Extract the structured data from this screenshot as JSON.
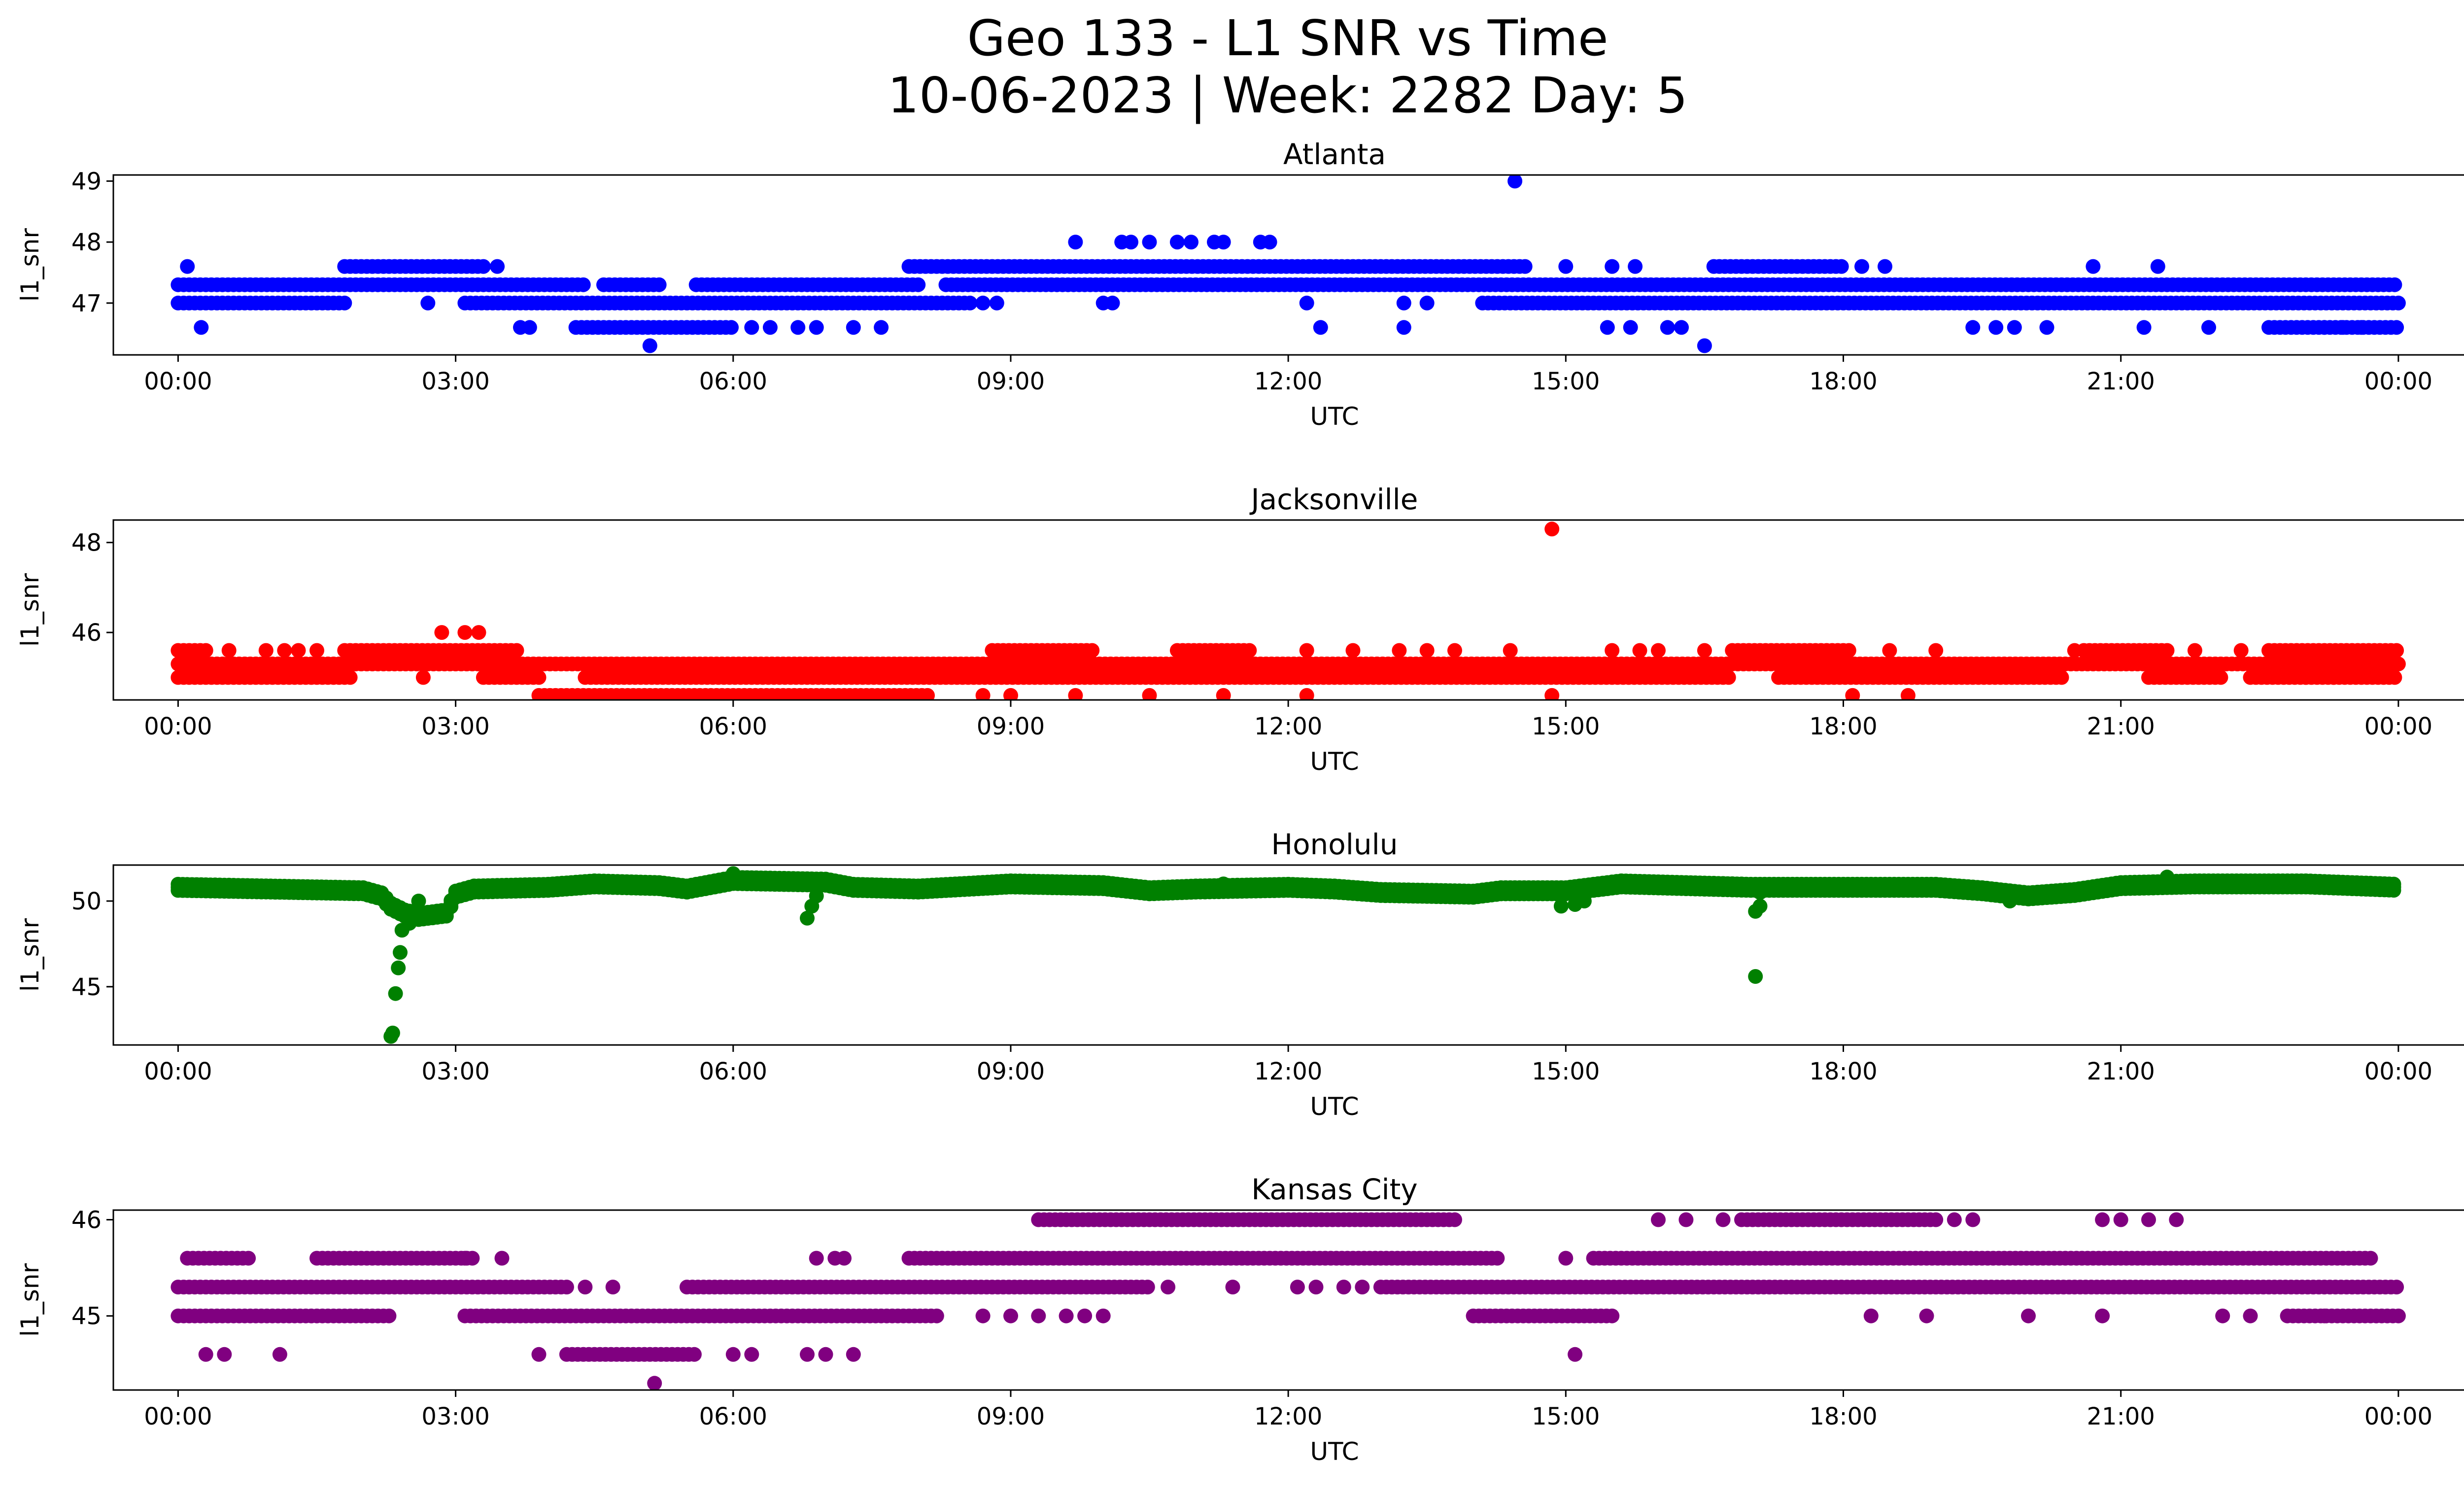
{
  "figure": {
    "title_line1": "Geo 133 - L1 SNR vs Time",
    "title_line2": "10-06-2023 | Week: 2282 Day: 5"
  },
  "chart_data": [
    {
      "type": "scatter",
      "title": "Atlanta",
      "xlabel": "UTC",
      "ylabel": "l1_snr",
      "color": "#0000ff",
      "xlim": [
        -0.7,
        25.7
      ],
      "ylim": [
        46.15,
        49.1
      ],
      "xticks": [
        "00:00",
        "03:00",
        "06:00",
        "09:00",
        "12:00",
        "15:00",
        "18:00",
        "21:00",
        "00:00"
      ],
      "yticks": [
        47,
        48,
        49
      ],
      "bands": [
        {
          "y": 47.0,
          "ranges": [
            [
              0.0,
              1.8
            ],
            [
              3.1,
              8.6
            ],
            [
              14.1,
              24.0
            ]
          ]
        },
        {
          "y": 47.3,
          "ranges": [
            [
              0.0,
              4.4
            ],
            [
              4.6,
              5.2
            ],
            [
              5.6,
              8.0
            ],
            [
              8.3,
              24.0
            ]
          ]
        },
        {
          "y": 47.6,
          "ranges": [
            [
              1.8,
              3.3
            ],
            [
              7.9,
              14.6
            ],
            [
              16.6,
              18.0
            ]
          ]
        },
        {
          "y": 46.6,
          "ranges": [
            [
              4.3,
              6.0
            ],
            [
              22.6,
              24.0
            ]
          ]
        }
      ],
      "points": [
        [
          0.1,
          47.6
        ],
        [
          0.25,
          46.6
        ],
        [
          2.7,
          47.0
        ],
        [
          3.45,
          47.6
        ],
        [
          3.7,
          46.6
        ],
        [
          3.8,
          46.6
        ],
        [
          5.1,
          46.3
        ],
        [
          6.2,
          46.6
        ],
        [
          6.4,
          46.6
        ],
        [
          6.7,
          46.6
        ],
        [
          6.9,
          46.6
        ],
        [
          7.3,
          46.6
        ],
        [
          7.6,
          46.6
        ],
        [
          8.7,
          47.0
        ],
        [
          8.85,
          47.0
        ],
        [
          9.7,
          48.0
        ],
        [
          10.0,
          47.0
        ],
        [
          10.1,
          47.0
        ],
        [
          10.2,
          48.0
        ],
        [
          10.3,
          48.0
        ],
        [
          10.5,
          48.0
        ],
        [
          10.8,
          48.0
        ],
        [
          10.95,
          48.0
        ],
        [
          11.2,
          48.0
        ],
        [
          11.3,
          48.0
        ],
        [
          11.7,
          48.0
        ],
        [
          11.8,
          48.0
        ],
        [
          12.2,
          47.0
        ],
        [
          12.35,
          46.6
        ],
        [
          13.25,
          47.0
        ],
        [
          13.25,
          46.6
        ],
        [
          13.5,
          47.0
        ],
        [
          14.45,
          49.0
        ],
        [
          15.0,
          47.6
        ],
        [
          15.45,
          46.6
        ],
        [
          15.5,
          47.6
        ],
        [
          15.7,
          46.6
        ],
        [
          15.75,
          47.6
        ],
        [
          16.1,
          46.6
        ],
        [
          16.25,
          46.6
        ],
        [
          16.5,
          46.3
        ],
        [
          18.2,
          47.6
        ],
        [
          18.45,
          47.6
        ],
        [
          19.4,
          46.6
        ],
        [
          19.65,
          46.6
        ],
        [
          19.85,
          46.6
        ],
        [
          20.2,
          46.6
        ],
        [
          20.7,
          47.6
        ],
        [
          21.25,
          46.6
        ],
        [
          21.4,
          47.6
        ],
        [
          21.95,
          46.6
        ],
        [
          23.2,
          46.6
        ],
        [
          23.4,
          46.6
        ],
        [
          23.6,
          46.6
        ]
      ]
    },
    {
      "type": "scatter",
      "title": "Jacksonville",
      "xlabel": "UTC",
      "ylabel": "l1_snr",
      "color": "#ff0000",
      "xlim": [
        -0.7,
        25.7
      ],
      "ylim": [
        44.5,
        48.5
      ],
      "xticks": [
        "00:00",
        "03:00",
        "06:00",
        "09:00",
        "12:00",
        "15:00",
        "18:00",
        "21:00",
        "00:00"
      ],
      "yticks": [
        46,
        48
      ],
      "bands": [
        {
          "y": 45.0,
          "ranges": [
            [
              0.0,
              1.9
            ],
            [
              3.3,
              3.9
            ],
            [
              4.4,
              16.8
            ],
            [
              17.3,
              20.4
            ],
            [
              21.3,
              22.1
            ],
            [
              22.4,
              24.0
            ]
          ]
        },
        {
          "y": 45.3,
          "ranges": [
            [
              0.0,
              24.0
            ]
          ]
        },
        {
          "y": 45.6,
          "ranges": [
            [
              0.0,
              0.35
            ],
            [
              1.8,
              3.7
            ],
            [
              8.8,
              9.9
            ],
            [
              10.8,
              11.6
            ],
            [
              16.8,
              18.1
            ],
            [
              20.6,
              21.5
            ],
            [
              22.6,
              24.0
            ]
          ]
        },
        {
          "y": 44.6,
          "ranges": [
            [
              3.9,
              8.1
            ]
          ]
        }
      ],
      "points": [
        [
          0.55,
          45.6
        ],
        [
          0.95,
          45.6
        ],
        [
          1.15,
          45.6
        ],
        [
          1.3,
          45.6
        ],
        [
          1.5,
          45.6
        ],
        [
          2.65,
          45.0
        ],
        [
          2.85,
          46.0
        ],
        [
          3.1,
          46.0
        ],
        [
          3.25,
          46.0
        ],
        [
          8.7,
          44.6
        ],
        [
          9.0,
          44.6
        ],
        [
          9.7,
          44.6
        ],
        [
          10.5,
          44.6
        ],
        [
          11.3,
          44.6
        ],
        [
          12.2,
          44.6
        ],
        [
          12.2,
          45.6
        ],
        [
          12.7,
          45.6
        ],
        [
          13.2,
          45.6
        ],
        [
          13.5,
          45.6
        ],
        [
          13.8,
          45.6
        ],
        [
          14.4,
          45.6
        ],
        [
          14.85,
          48.3
        ],
        [
          14.85,
          44.6
        ],
        [
          15.5,
          45.6
        ],
        [
          15.8,
          45.6
        ],
        [
          16.0,
          45.6
        ],
        [
          16.5,
          45.6
        ],
        [
          18.1,
          44.6
        ],
        [
          18.7,
          44.6
        ],
        [
          18.5,
          45.6
        ],
        [
          19.0,
          45.6
        ],
        [
          20.5,
          45.6
        ],
        [
          21.8,
          45.6
        ],
        [
          22.3,
          45.6
        ],
        [
          23.0,
          45.0
        ],
        [
          23.3,
          45.0
        ]
      ]
    },
    {
      "type": "scatter",
      "title": "Honolulu",
      "xlabel": "UTC",
      "ylabel": "l1_snr",
      "color": "#008000",
      "xlim": [
        -0.7,
        25.7
      ],
      "ylim": [
        41.6,
        52.1
      ],
      "xticks": [
        "00:00",
        "03:00",
        "06:00",
        "09:00",
        "12:00",
        "15:00",
        "18:00",
        "21:00",
        "00:00"
      ],
      "yticks": [
        45,
        50
      ],
      "segments": [
        [
          0.0,
          50.8
        ],
        [
          1.0,
          50.7
        ],
        [
          2.0,
          50.6
        ],
        [
          2.2,
          50.3
        ],
        [
          2.3,
          49.7
        ],
        [
          2.45,
          49.3
        ],
        [
          2.6,
          49.1
        ],
        [
          2.9,
          49.3
        ],
        [
          3.0,
          50.4
        ],
        [
          3.2,
          50.7
        ],
        [
          4.0,
          50.8
        ],
        [
          4.5,
          51.0
        ],
        [
          5.2,
          50.9
        ],
        [
          5.5,
          50.7
        ],
        [
          6.0,
          51.2
        ],
        [
          7.0,
          51.1
        ],
        [
          7.3,
          50.8
        ],
        [
          8.0,
          50.7
        ],
        [
          9.0,
          51.0
        ],
        [
          10.0,
          50.9
        ],
        [
          10.5,
          50.6
        ],
        [
          11.0,
          50.7
        ],
        [
          12.0,
          50.8
        ],
        [
          12.5,
          50.7
        ],
        [
          13.0,
          50.5
        ],
        [
          14.0,
          50.4
        ],
        [
          14.3,
          50.6
        ],
        [
          15.0,
          50.6
        ],
        [
          15.3,
          50.8
        ],
        [
          15.6,
          51.0
        ],
        [
          17.0,
          50.8
        ],
        [
          18.0,
          50.8
        ],
        [
          19.0,
          50.8
        ],
        [
          19.5,
          50.6
        ],
        [
          20.0,
          50.3
        ],
        [
          20.5,
          50.5
        ],
        [
          21.0,
          50.9
        ],
        [
          21.8,
          51.0
        ],
        [
          22.5,
          51.0
        ],
        [
          23.0,
          51.0
        ],
        [
          24.0,
          50.8
        ]
      ],
      "points": [
        [
          2.3,
          42.1
        ],
        [
          2.32,
          42.3
        ],
        [
          2.35,
          44.6
        ],
        [
          2.38,
          46.1
        ],
        [
          2.4,
          47.0
        ],
        [
          2.42,
          48.3
        ],
        [
          2.5,
          49.0
        ],
        [
          2.5,
          48.7
        ],
        [
          2.6,
          50.0
        ],
        [
          6.8,
          49.0
        ],
        [
          6.85,
          49.7
        ],
        [
          6.9,
          50.3
        ],
        [
          14.95,
          49.7
        ],
        [
          15.1,
          49.8
        ],
        [
          15.2,
          50.0
        ],
        [
          17.05,
          45.6
        ],
        [
          17.05,
          49.4
        ],
        [
          17.1,
          49.7
        ],
        [
          17.1,
          50.5
        ],
        [
          6.0,
          51.6
        ],
        [
          11.3,
          51.0
        ],
        [
          13.2,
          50.5
        ],
        [
          19.8,
          50.0
        ],
        [
          21.5,
          51.4
        ]
      ]
    },
    {
      "type": "scatter",
      "title": "Kansas City",
      "xlabel": "UTC",
      "ylabel": "l1_snr",
      "color": "#800080",
      "xlim": [
        -0.7,
        25.7
      ],
      "ylim": [
        44.23,
        46.1
      ],
      "xticks": [
        "00:00",
        "03:00",
        "06:00",
        "09:00",
        "12:00",
        "15:00",
        "18:00",
        "21:00",
        "00:00"
      ],
      "yticks": [
        45,
        46
      ],
      "bands": [
        {
          "y": 45.0,
          "ranges": [
            [
              0.0,
              2.3
            ],
            [
              3.1,
              8.2
            ],
            [
              14.0,
              15.5
            ],
            [
              22.8,
              24.0
            ]
          ]
        },
        {
          "y": 45.3,
          "ranges": [
            [
              0.0,
              4.2
            ],
            [
              5.5,
              10.5
            ],
            [
              13.0,
              24.0
            ]
          ]
        },
        {
          "y": 45.6,
          "ranges": [
            [
              0.1,
              0.8
            ],
            [
              1.5,
              3.2
            ],
            [
              7.9,
              14.3
            ],
            [
              15.3,
              23.7
            ]
          ]
        },
        {
          "y": 46.0,
          "ranges": [
            [
              9.3,
              13.8
            ],
            [
              16.9,
              19.0
            ]
          ]
        },
        {
          "y": 44.6,
          "ranges": [
            [
              4.2,
              5.6
            ]
          ]
        }
      ],
      "points": [
        [
          0.3,
          44.6
        ],
        [
          0.5,
          44.6
        ],
        [
          1.1,
          44.6
        ],
        [
          3.1,
          45.6
        ],
        [
          3.5,
          45.6
        ],
        [
          3.9,
          44.6
        ],
        [
          4.4,
          45.3
        ],
        [
          4.7,
          45.3
        ],
        [
          5.15,
          44.3
        ],
        [
          6.0,
          44.6
        ],
        [
          6.2,
          44.6
        ],
        [
          6.8,
          44.6
        ],
        [
          7.0,
          44.6
        ],
        [
          7.3,
          44.6
        ],
        [
          6.9,
          45.6
        ],
        [
          7.1,
          45.6
        ],
        [
          7.2,
          45.6
        ],
        [
          8.7,
          45.0
        ],
        [
          9.0,
          45.0
        ],
        [
          9.3,
          45.0
        ],
        [
          9.6,
          45.0
        ],
        [
          9.8,
          45.0
        ],
        [
          10.0,
          45.0
        ],
        [
          10.7,
          45.3
        ],
        [
          11.4,
          45.3
        ],
        [
          12.1,
          45.3
        ],
        [
          12.3,
          45.3
        ],
        [
          12.6,
          45.3
        ],
        [
          12.8,
          45.3
        ],
        [
          13.6,
          45.6
        ],
        [
          15.1,
          44.6
        ],
        [
          15.0,
          45.6
        ],
        [
          16.0,
          46.0
        ],
        [
          16.3,
          46.0
        ],
        [
          16.7,
          46.0
        ],
        [
          19.2,
          46.0
        ],
        [
          19.4,
          46.0
        ],
        [
          18.3,
          45.0
        ],
        [
          18.9,
          45.0
        ],
        [
          20.0,
          45.0
        ],
        [
          20.8,
          45.0
        ],
        [
          20.8,
          46.0
        ],
        [
          21.0,
          46.0
        ],
        [
          21.3,
          46.0
        ],
        [
          21.6,
          46.0
        ],
        [
          22.1,
          45.0
        ],
        [
          22.4,
          45.0
        ],
        [
          23.2,
          45.0
        ]
      ]
    }
  ]
}
